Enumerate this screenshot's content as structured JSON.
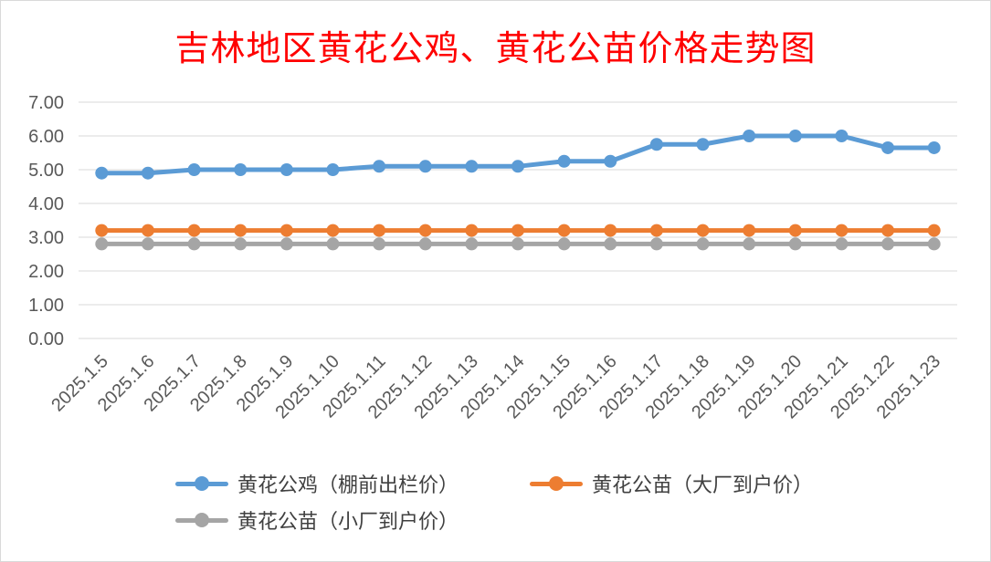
{
  "chart_data": {
    "type": "line",
    "title": "吉林地区黄花公鸡、黄花公苗价格走势图",
    "categories": [
      "2025.1.5",
      "2025.1.6",
      "2025.1.7",
      "2025.1.8",
      "2025.1.9",
      "2025.1.10",
      "2025.1.11",
      "2025.1.12",
      "2025.1.13",
      "2025.1.14",
      "2025.1.15",
      "2025.1.16",
      "2025.1.17",
      "2025.1.18",
      "2025.1.19",
      "2025.1.20",
      "2025.1.21",
      "2025.1.22",
      "2025.1.23"
    ],
    "series": [
      {
        "name": "黄花公鸡（棚前出栏价）",
        "color": "#5b9bd5",
        "values": [
          4.9,
          4.9,
          5.0,
          5.0,
          5.0,
          5.0,
          5.1,
          5.1,
          5.1,
          5.1,
          5.25,
          5.25,
          5.75,
          5.75,
          6.0,
          6.0,
          6.0,
          5.65,
          5.65
        ]
      },
      {
        "name": "黄花公苗（大厂到户价）",
        "color": "#ed7d31",
        "values": [
          3.2,
          3.2,
          3.2,
          3.2,
          3.2,
          3.2,
          3.2,
          3.2,
          3.2,
          3.2,
          3.2,
          3.2,
          3.2,
          3.2,
          3.2,
          3.2,
          3.2,
          3.2,
          3.2
        ]
      },
      {
        "name": "黄花公苗（小厂到户价）",
        "color": "#a5a5a5",
        "values": [
          2.8,
          2.8,
          2.8,
          2.8,
          2.8,
          2.8,
          2.8,
          2.8,
          2.8,
          2.8,
          2.8,
          2.8,
          2.8,
          2.8,
          2.8,
          2.8,
          2.8,
          2.8,
          2.8
        ]
      }
    ],
    "y_ticks": [
      "0.00",
      "1.00",
      "2.00",
      "3.00",
      "4.00",
      "5.00",
      "6.00",
      "7.00"
    ],
    "ylim": [
      0,
      7
    ],
    "grid": true,
    "legend_position": "bottom"
  }
}
